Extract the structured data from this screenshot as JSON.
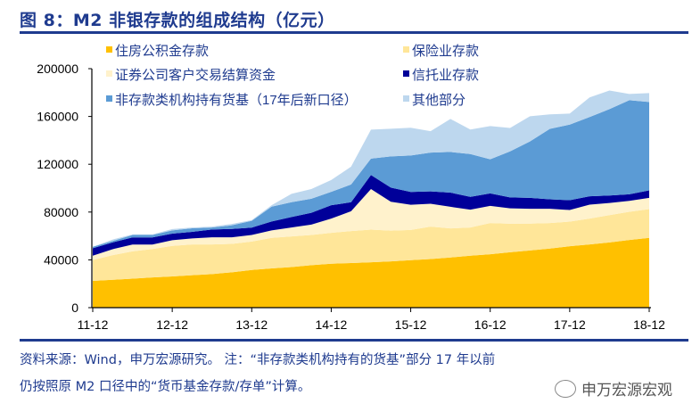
{
  "title": "图 8：M2 非银存款的组成结构（亿元）",
  "footer": {
    "line1": "资料来源：Wind，申万宏源研究。    注：“非存款类机构持有的货基”部分  17 年以前",
    "line2": "仍按照原 M2 口径中的“货币基金存款/存单”计算。",
    "watermark": "申万宏源宏观"
  },
  "chart_data": {
    "type": "area",
    "stacked": true,
    "title": "",
    "xlabel": "",
    "ylabel": "",
    "ylim": [
      0,
      200000
    ],
    "yticks": [
      "0",
      "40000",
      "80000",
      "120000",
      "160000",
      "200000"
    ],
    "xticks": [
      "11-12",
      "12-12",
      "13-12",
      "14-12",
      "15-12",
      "16-12",
      "17-12",
      "18-12"
    ],
    "grid": false,
    "legend_position": "top",
    "x": [
      "11-12",
      "12-03",
      "12-06",
      "12-09",
      "12-12",
      "13-03",
      "13-06",
      "13-09",
      "13-12",
      "14-03",
      "14-06",
      "14-09",
      "14-12",
      "15-03",
      "15-06",
      "15-09",
      "15-12",
      "16-03",
      "16-06",
      "16-09",
      "16-12",
      "17-03",
      "17-06",
      "17-09",
      "17-12",
      "18-03",
      "18-06",
      "18-09",
      "18-12"
    ],
    "series": [
      {
        "name": "住房公积金存款",
        "color": "#FFC000",
        "values": [
          22400,
          23300,
          24300,
          25300,
          26100,
          27100,
          28100,
          29600,
          31500,
          32800,
          34000,
          35500,
          36800,
          37300,
          38000,
          38700,
          39700,
          40700,
          42000,
          43500,
          44700,
          46400,
          47900,
          49400,
          51400,
          52900,
          54600,
          56600,
          58400
        ]
      },
      {
        "name": "保险业存款",
        "color": "#FFE699",
        "values": [
          17400,
          20600,
          22800,
          23800,
          25600,
          25800,
          24800,
          23800,
          23800,
          25600,
          25600,
          25300,
          25800,
          26800,
          27300,
          25800,
          25300,
          27100,
          24300,
          23600,
          26100,
          23800,
          22400,
          21400,
          20600,
          21600,
          22800,
          23600,
          24100
        ]
      },
      {
        "name": "证券公司客户交易结算资金",
        "color": "#FFF2CC",
        "values": [
          3700,
          5000,
          5700,
          3700,
          4700,
          5000,
          6000,
          5500,
          5500,
          6200,
          7500,
          8700,
          11900,
          16600,
          34000,
          24100,
          21100,
          19100,
          18100,
          14900,
          14400,
          12900,
          12400,
          11900,
          9700,
          11700,
          10200,
          9200,
          9400
        ]
      },
      {
        "name": "信托业存款",
        "color": "#000099",
        "values": [
          6200,
          5700,
          6000,
          6000,
          5500,
          5500,
          6500,
          7000,
          6200,
          7500,
          8700,
          9900,
          11200,
          7500,
          11700,
          11900,
          10700,
          10400,
          11900,
          10700,
          10400,
          9200,
          9200,
          8000,
          8200,
          7000,
          6200,
          5500,
          6200
        ]
      },
      {
        "name": "非存款类机构持有货基（17年后新口径）",
        "color": "#5B9BD5",
        "values": [
          1200,
          1200,
          2000,
          2000,
          2700,
          3000,
          1700,
          3000,
          5700,
          12400,
          12400,
          11700,
          11200,
          14900,
          13700,
          26100,
          30500,
          32500,
          34000,
          35800,
          28600,
          38500,
          47200,
          58900,
          63300,
          66300,
          72300,
          78700,
          74000
        ]
      },
      {
        "name": "其他部分",
        "color": "#BDD7EE",
        "values": [
          0,
          1200,
          500,
          500,
          1200,
          700,
          700,
          1200,
          500,
          1200,
          7000,
          8200,
          9900,
          14900,
          24300,
          23100,
          23300,
          17900,
          27600,
          20600,
          27800,
          19600,
          21100,
          12200,
          9200,
          16400,
          15600,
          5200,
          7500
        ]
      }
    ]
  }
}
